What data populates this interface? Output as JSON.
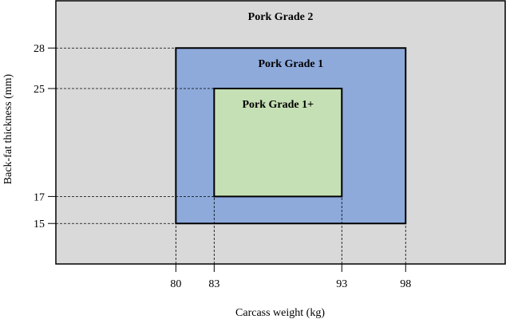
{
  "chart_data": {
    "type": "diagram",
    "xlabel": "Carcass weight (kg)",
    "ylabel": "Back-fat thickness (mm)",
    "xlim": [
      70.6,
      105.8
    ],
    "ylim": [
      12.0,
      31.5
    ],
    "x_ticks": [
      80,
      83,
      93,
      98
    ],
    "y_ticks": [
      28,
      25,
      17,
      15
    ],
    "zones": [
      {
        "label": "Pork Grade 2",
        "color": "#d9d9d9",
        "x": [
          70.6,
          105.8
        ],
        "y": [
          12.0,
          31.5
        ]
      },
      {
        "label": "Pork Grade 1",
        "color": "#8eaadb",
        "x": [
          80,
          98
        ],
        "y": [
          15,
          28
        ]
      },
      {
        "label": "Pork Grade 1+",
        "color": "#c5e0b4",
        "x": [
          83,
          93
        ],
        "y": [
          17,
          25
        ]
      }
    ]
  }
}
